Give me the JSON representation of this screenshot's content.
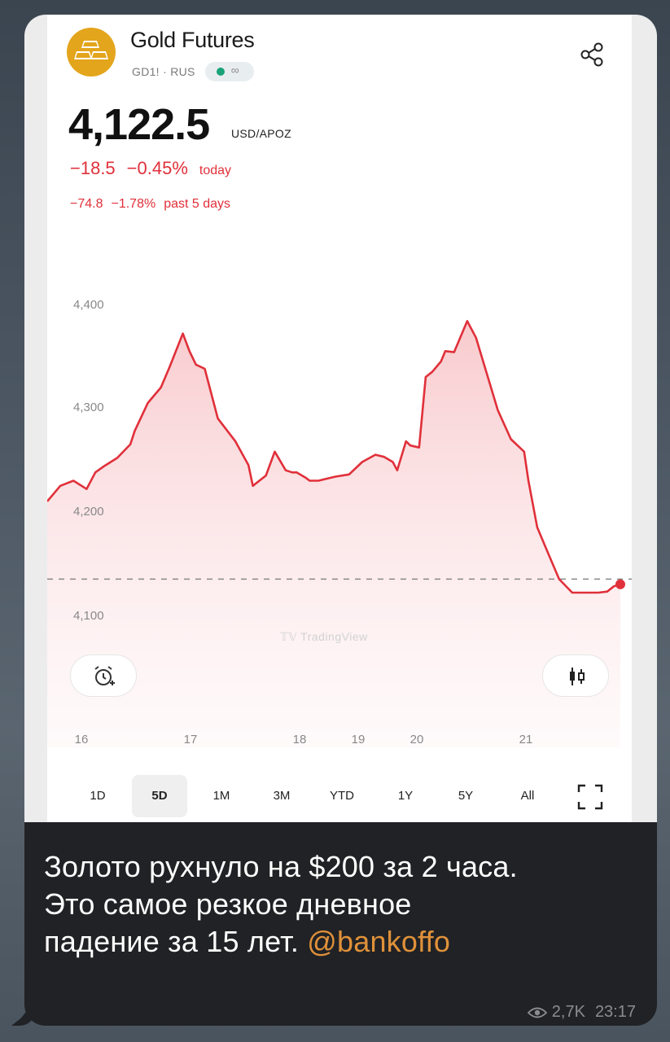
{
  "instrument": {
    "name": "Gold Futures",
    "ticker_line": "GD1! · RUS",
    "price": "4,122.5",
    "currency": "USD/APOZ",
    "change_today_abs": "−18.5",
    "change_today_pct": "−0.45%",
    "today_label": "today",
    "change_5d_abs": "−74.8",
    "change_5d_pct": "−1.78%",
    "past_5d_label": "past 5 days"
  },
  "colors": {
    "logo": "#e3a51c",
    "down": "#e0303a",
    "live_dot": "#1aa37a",
    "mention": "#e0913a"
  },
  "icons": {
    "share": "share-icon",
    "alarm": "add-alarm-icon",
    "candles": "candlestick-icon",
    "fullscreen": "fullscreen-icon",
    "views": "eye-icon"
  },
  "watermark": "TradingView",
  "chart_data": {
    "type": "line",
    "x_ticks": [
      "16",
      "17",
      "18",
      "19",
      "20",
      "21"
    ],
    "y_ticks": [
      "4,400",
      "4,300",
      "4,200",
      "4,100"
    ],
    "ylim": [
      4060,
      4430
    ],
    "reference_line": 4135,
    "x": [
      0.0,
      0.3,
      0.6,
      0.9,
      1.1,
      1.3,
      1.6,
      1.9,
      2.0,
      2.3,
      2.6,
      2.8,
      3.1,
      3.25,
      3.4,
      3.6,
      3.9,
      4.3,
      4.6,
      4.7,
      5.0,
      5.2,
      5.45,
      5.6,
      5.7,
      5.9,
      6.0,
      6.2,
      6.4,
      6.6,
      6.9,
      7.2,
      7.5,
      7.7,
      7.9,
      8.0,
      8.2,
      8.3,
      8.5,
      8.65,
      8.8,
      9.0,
      9.1,
      9.3,
      9.6,
      9.8,
      10.0,
      10.3,
      10.6,
      10.9,
      11.0,
      11.2,
      11.45,
      11.7,
      12.0,
      12.3,
      12.6,
      12.8,
      12.95,
      13.1
    ],
    "y": [
      4210,
      4225,
      4230,
      4222,
      4238,
      4244,
      4252,
      4265,
      4278,
      4305,
      4320,
      4340,
      4372,
      4355,
      4342,
      4338,
      4290,
      4268,
      4245,
      4225,
      4235,
      4258,
      4240,
      4238,
      4238,
      4233,
      4230,
      4230,
      4232,
      4234,
      4236,
      4248,
      4255,
      4253,
      4248,
      4240,
      4268,
      4264,
      4262,
      4330,
      4335,
      4345,
      4355,
      4354,
      4384,
      4368,
      4340,
      4298,
      4270,
      4258,
      4230,
      4185,
      4160,
      4135,
      4122,
      4122,
      4122,
      4123,
      4128,
      4130
    ],
    "grid": false,
    "legend": "none"
  },
  "ranges": {
    "items": [
      "1D",
      "5D",
      "1M",
      "3M",
      "YTD",
      "1Y",
      "5Y",
      "All"
    ],
    "active": "5D"
  },
  "post": {
    "line1": "Золото рухнуло на $200 за 2 часа.",
    "line2": "Это самое резкое дневное",
    "line3_prefix": "падение за 15 лет. ",
    "mention": "@bankoffo",
    "views": "2,7K",
    "time": "23:17"
  }
}
